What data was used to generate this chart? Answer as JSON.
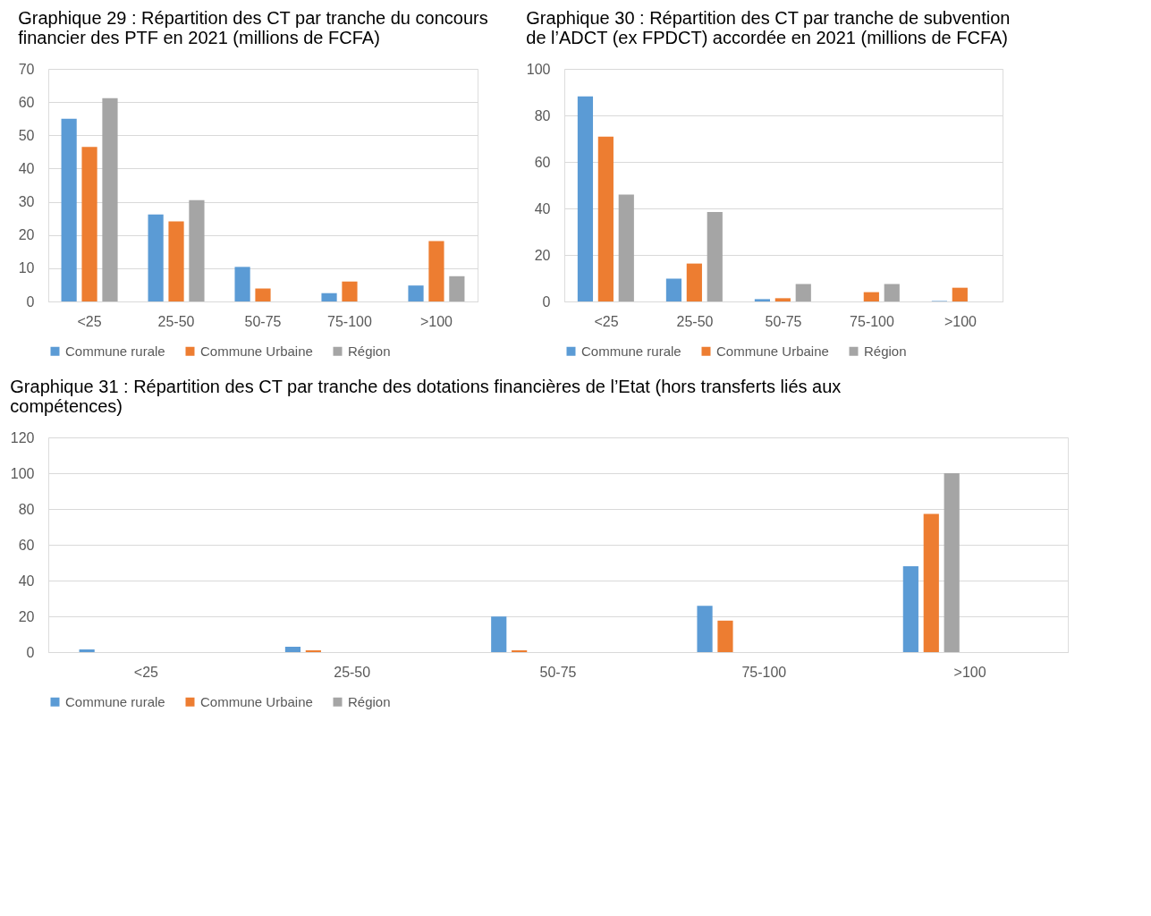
{
  "chart_data": [
    {
      "type": "bar",
      "title": "Graphique 29 : Répartition des CT par tranche du concours financier des PTF en 2021 (millions de FCFA)",
      "categories": [
        "<25",
        "25-50",
        "50-75",
        "75-100",
        ">100"
      ],
      "series": [
        {
          "name": "Commune rurale",
          "color": "#5b9bd5",
          "values": [
            55,
            26.2,
            10.4,
            2.5,
            4.8
          ]
        },
        {
          "name": "Commune Urbaine",
          "color": "#ed7d31",
          "values": [
            46.5,
            24.1,
            3.9,
            6,
            18.2
          ]
        },
        {
          "name": "Région",
          "color": "#a5a5a5",
          "values": [
            61.2,
            30.5,
            0,
            0,
            7.6
          ]
        }
      ],
      "ylim": [
        0,
        70
      ],
      "yticks": [
        0,
        10,
        20,
        30,
        40,
        50,
        60,
        70
      ],
      "grid": "y",
      "legend": "bottom"
    },
    {
      "type": "bar",
      "title": "Graphique 30 : Répartition des CT par tranche de subvention de l’ADCT (ex FPDCT) accordée en 2021 (millions de FCFA)",
      "categories": [
        "<25",
        "25-50",
        "50-75",
        "75-100",
        ">100"
      ],
      "series": [
        {
          "name": "Commune rurale",
          "color": "#5b9bd5",
          "values": [
            88.2,
            9.8,
            1,
            0,
            0.2
          ]
        },
        {
          "name": "Commune Urbaine",
          "color": "#ed7d31",
          "values": [
            70.9,
            16.3,
            1.4,
            4,
            5.9
          ]
        },
        {
          "name": "Région",
          "color": "#a5a5a5",
          "values": [
            46,
            38.5,
            7.5,
            7.5,
            0
          ]
        }
      ],
      "ylim": [
        0,
        100
      ],
      "yticks": [
        0,
        20,
        40,
        60,
        80,
        100
      ],
      "grid": "y",
      "legend": "bottom"
    },
    {
      "type": "bar",
      "title": "Graphique 31 : Répartition des CT par tranche des dotations financières de l’Etat (hors transferts liés aux compétences)",
      "categories": [
        "<25",
        "25-50",
        "50-75",
        "75-100",
        ">100"
      ],
      "series": [
        {
          "name": "Commune rurale",
          "color": "#5b9bd5",
          "values": [
            1.5,
            3,
            19.9,
            25.9,
            48
          ]
        },
        {
          "name": "Commune Urbaine",
          "color": "#ed7d31",
          "values": [
            0,
            1,
            1,
            17.6,
            77.3
          ]
        },
        {
          "name": "Région",
          "color": "#a5a5a5",
          "values": [
            0,
            0,
            0,
            0,
            100
          ]
        }
      ],
      "ylim": [
        0,
        120
      ],
      "yticks": [
        0,
        20,
        40,
        60,
        80,
        100,
        120
      ],
      "grid": "y",
      "legend": "bottom"
    }
  ]
}
